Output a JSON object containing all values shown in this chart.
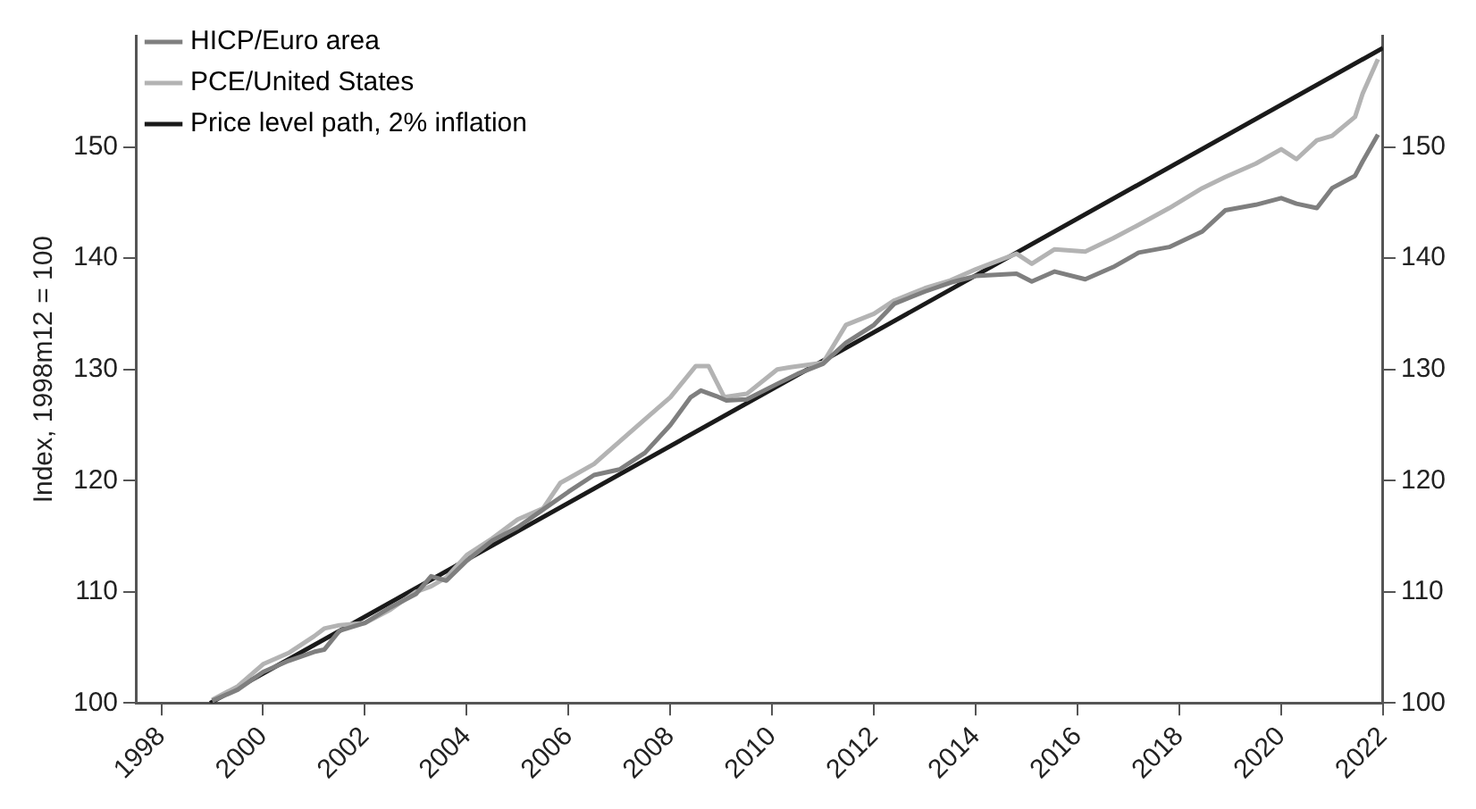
{
  "chart_data": {
    "type": "line",
    "ylabel": "Index, 1998m12 = 100",
    "legend": "top left",
    "grid": false,
    "marker": "none",
    "line_style": "solid",
    "xlim": [
      1997.5,
      2022
    ],
    "xticks": [
      1998,
      2000,
      2002,
      2004,
      2006,
      2008,
      2010,
      2012,
      2014,
      2016,
      2018,
      2020,
      2022
    ],
    "ylim": [
      100,
      160
    ],
    "yticks": [
      100,
      110,
      120,
      130,
      140,
      150
    ],
    "y2lim": [
      100,
      160
    ],
    "y2ticks": [
      100,
      110,
      120,
      130,
      140,
      150
    ],
    "series": [
      {
        "name": "HICP/Euro area",
        "color": "#7f7f7f",
        "x": [
          1999.0,
          1999.5,
          2000.0,
          2000.5,
          2001.0,
          2001.2,
          2001.5,
          2002.0,
          2002.5,
          2003.0,
          2003.3,
          2003.6,
          2004.0,
          2004.5,
          2005.0,
          2005.5,
          2006.0,
          2006.5,
          2007.0,
          2007.5,
          2008.0,
          2008.4,
          2008.6,
          2008.9,
          2009.1,
          2009.5,
          2010.1,
          2010.5,
          2011.0,
          2011.45,
          2012.0,
          2012.4,
          2013.0,
          2013.5,
          2014.0,
          2014.8,
          2015.1,
          2015.55,
          2016.15,
          2016.7,
          2017.2,
          2017.8,
          2018.45,
          2018.9,
          2019.5,
          2020.0,
          2020.3,
          2020.7,
          2021.0,
          2021.45,
          2021.6,
          2021.9
        ],
        "values": [
          100.2,
          101.2,
          102.8,
          103.8,
          104.6,
          104.8,
          106.5,
          107.2,
          108.6,
          109.8,
          111.4,
          111.0,
          112.8,
          114.6,
          115.8,
          117.4,
          119.0,
          120.5,
          121.0,
          122.5,
          125.0,
          127.5,
          128.1,
          127.6,
          127.2,
          127.3,
          128.7,
          129.6,
          130.5,
          132.4,
          134.0,
          135.9,
          137.0,
          137.8,
          138.4,
          138.6,
          137.9,
          138.8,
          138.1,
          139.2,
          140.5,
          141.0,
          142.4,
          144.3,
          144.8,
          145.4,
          144.9,
          144.5,
          146.3,
          147.4,
          148.7,
          151.1
        ]
      },
      {
        "name": "PCE/United States",
        "color": "#b3b3b3",
        "x": [
          1999.0,
          1999.5,
          2000.0,
          2000.5,
          2001.0,
          2001.2,
          2001.5,
          2002.0,
          2002.5,
          2003.0,
          2003.3,
          2003.6,
          2004.0,
          2004.5,
          2005.0,
          2005.5,
          2005.84,
          2006.0,
          2006.5,
          2007.0,
          2007.5,
          2008.0,
          2008.5,
          2008.75,
          2009.06,
          2009.5,
          2010.1,
          2010.36,
          2011.0,
          2011.45,
          2012.0,
          2012.4,
          2013.0,
          2013.5,
          2014.0,
          2014.8,
          2015.1,
          2015.55,
          2016.15,
          2016.7,
          2017.2,
          2017.8,
          2018.45,
          2018.9,
          2019.5,
          2020.0,
          2020.3,
          2020.7,
          2021.0,
          2021.45,
          2021.6,
          2021.9
        ],
        "values": [
          100.3,
          101.5,
          103.5,
          104.5,
          106.0,
          106.7,
          107.0,
          107.2,
          108.4,
          110.0,
          110.5,
          111.3,
          113.3,
          114.8,
          116.5,
          117.5,
          119.8,
          120.2,
          121.5,
          123.5,
          125.5,
          127.5,
          130.3,
          130.3,
          127.5,
          127.8,
          130.0,
          130.2,
          130.6,
          134.0,
          135.0,
          136.2,
          137.3,
          138.0,
          139.0,
          140.4,
          139.5,
          140.8,
          140.6,
          141.8,
          143.0,
          144.5,
          146.3,
          147.3,
          148.5,
          149.8,
          148.9,
          150.6,
          151.0,
          152.7,
          154.8,
          157.9
        ]
      },
      {
        "name": "Price level path, 2% inflation",
        "color": "#1a1a1a",
        "x": [
          1998.96,
          2022
        ],
        "values": [
          100,
          158.9
        ]
      }
    ]
  }
}
